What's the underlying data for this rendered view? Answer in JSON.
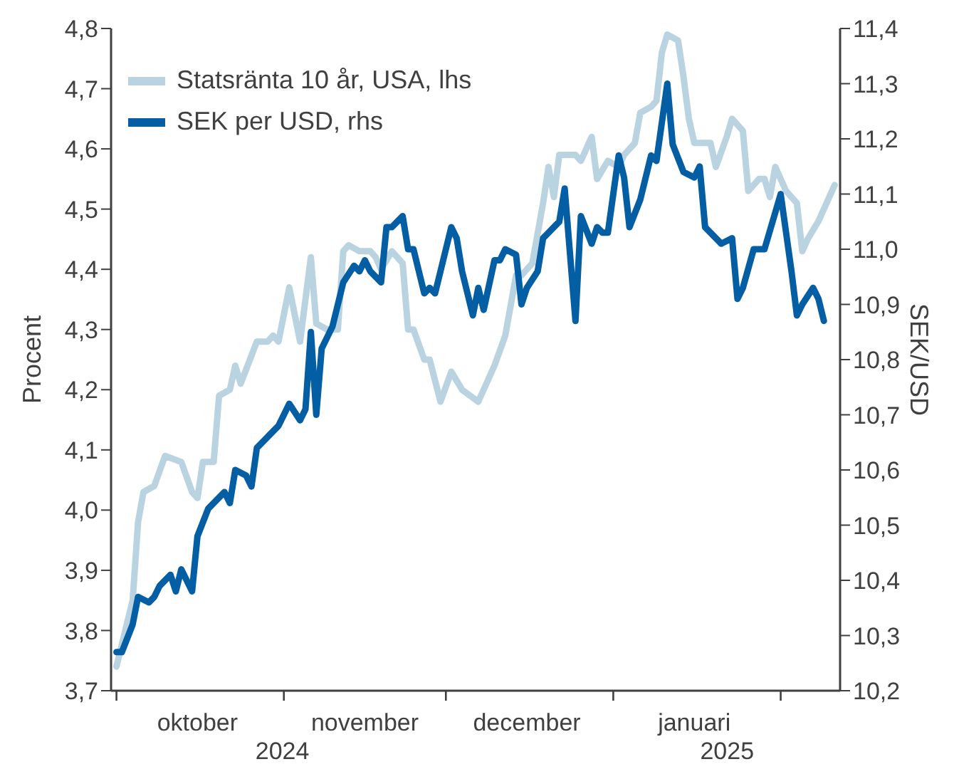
{
  "chart_data": {
    "type": "line",
    "xlabel": null,
    "ylabel": "Procent",
    "y2label": "SEK/USD",
    "xlim": [
      "2024-09-30",
      "2025-02-12"
    ],
    "xticks": [
      {
        "value": "2024-10-01",
        "label": null
      },
      {
        "value": "2024-10-16",
        "label": "oktober"
      },
      {
        "value": "2024-11-01",
        "label": null
      },
      {
        "value": "2024-11-16",
        "label": "november"
      },
      {
        "value": "2024-12-01",
        "label": null
      },
      {
        "value": "2024-12-16",
        "label": "december"
      },
      {
        "value": "2025-01-01",
        "label": null
      },
      {
        "value": "2025-01-16",
        "label": "januari"
      },
      {
        "value": "2025-02-01",
        "label": null
      }
    ],
    "annotations": [
      "2024",
      "2025"
    ],
    "ylim": [
      3.7,
      4.8
    ],
    "yticks": [
      {
        "value": 3.7,
        "label": "3,7"
      },
      {
        "value": 3.8,
        "label": "3,8"
      },
      {
        "value": 3.9,
        "label": "3,9"
      },
      {
        "value": 4.0,
        "label": "4,0"
      },
      {
        "value": 4.1,
        "label": "4,1"
      },
      {
        "value": 4.2,
        "label": "4,2"
      },
      {
        "value": 4.3,
        "label": "4,3"
      },
      {
        "value": 4.4,
        "label": "4,4"
      },
      {
        "value": 4.5,
        "label": "4,5"
      },
      {
        "value": 4.6,
        "label": "4,6"
      },
      {
        "value": 4.7,
        "label": "4,7"
      },
      {
        "value": 4.8,
        "label": "4,8"
      }
    ],
    "y2lim": [
      10.2,
      11.4
    ],
    "y2ticks": [
      {
        "value": 10.2,
        "label": "10,2"
      },
      {
        "value": 10.3,
        "label": "10,3"
      },
      {
        "value": 10.4,
        "label": "10,4"
      },
      {
        "value": 10.5,
        "label": "10,5"
      },
      {
        "value": 10.6,
        "label": "10,6"
      },
      {
        "value": 10.7,
        "label": "10,7"
      },
      {
        "value": 10.8,
        "label": "10,8"
      },
      {
        "value": 10.9,
        "label": "10,9"
      },
      {
        "value": 11.0,
        "label": "11,0"
      },
      {
        "value": 11.1,
        "label": "11,1"
      },
      {
        "value": 11.2,
        "label": "11,2"
      },
      {
        "value": 11.3,
        "label": "11,3"
      },
      {
        "value": 11.4,
        "label": "11,4"
      }
    ],
    "legend": "top left",
    "line_style": "solid",
    "series": [
      {
        "name": "Statsränta 10 år, USA, lhs",
        "color": "#b9d3e1",
        "x": [
          "2024-10-01",
          "2024-10-04",
          "2024-10-05",
          "2024-10-06",
          "2024-10-08",
          "2024-10-10",
          "2024-10-13",
          "2024-10-15",
          "2024-10-16",
          "2024-10-17",
          "2024-10-19",
          "2024-10-20",
          "2024-10-22",
          "2024-10-23",
          "2024-10-24",
          "2024-10-27",
          "2024-10-29",
          "2024-10-30",
          "2024-10-31",
          "2024-11-02",
          "2024-11-04",
          "2024-11-06",
          "2024-11-07",
          "2024-11-09",
          "2024-11-11",
          "2024-11-12",
          "2024-11-13",
          "2024-11-15",
          "2024-11-17",
          "2024-11-18",
          "2024-11-19",
          "2024-11-21",
          "2024-11-23",
          "2024-11-24",
          "2024-11-25",
          "2024-11-27",
          "2024-11-28",
          "2024-11-30",
          "2024-12-02",
          "2024-12-04",
          "2024-12-07",
          "2024-12-08",
          "2024-12-10",
          "2024-12-12",
          "2024-12-14",
          "2024-12-15",
          "2024-12-17",
          "2024-12-19",
          "2024-12-20",
          "2024-12-21",
          "2024-12-22",
          "2024-12-25",
          "2024-12-26",
          "2024-12-28",
          "2024-12-29",
          "2024-12-31",
          "2025-01-02",
          "2025-01-03",
          "2025-01-05",
          "2025-01-06",
          "2025-01-08",
          "2025-01-09",
          "2025-01-10",
          "2025-01-11",
          "2025-01-13",
          "2025-01-14",
          "2025-01-15",
          "2025-01-16",
          "2025-01-18",
          "2025-01-19",
          "2025-01-20",
          "2025-01-22",
          "2025-01-23",
          "2025-01-25",
          "2025-01-26",
          "2025-01-28",
          "2025-01-29",
          "2025-01-30",
          "2025-01-31",
          "2025-02-02",
          "2025-02-04",
          "2025-02-05",
          "2025-02-06",
          "2025-02-08",
          "2025-02-09",
          "2025-02-11"
        ],
        "values": [
          3.74,
          3.85,
          3.98,
          4.03,
          4.04,
          4.09,
          4.08,
          4.03,
          4.02,
          4.08,
          4.08,
          4.19,
          4.2,
          4.24,
          4.21,
          4.28,
          4.28,
          4.29,
          4.28,
          4.37,
          4.28,
          4.42,
          4.31,
          4.3,
          4.3,
          4.43,
          4.44,
          4.43,
          4.43,
          4.42,
          4.4,
          4.43,
          4.41,
          4.3,
          4.3,
          4.25,
          4.25,
          4.18,
          4.23,
          4.2,
          4.18,
          4.2,
          4.24,
          4.29,
          4.39,
          4.39,
          4.41,
          4.51,
          4.57,
          4.52,
          4.59,
          4.59,
          4.58,
          4.62,
          4.55,
          4.58,
          4.57,
          4.59,
          4.61,
          4.66,
          4.67,
          4.68,
          4.76,
          4.79,
          4.78,
          4.72,
          4.65,
          4.61,
          4.61,
          4.61,
          4.57,
          4.62,
          4.65,
          4.63,
          4.53,
          4.55,
          4.55,
          4.52,
          4.57,
          4.53,
          4.51,
          4.43,
          4.45,
          4.48,
          4.5,
          4.54
        ]
      },
      {
        "name": "SEK per USD, rhs",
        "color": "#045ea3",
        "axis": "y2",
        "x": [
          "2024-10-01",
          "2024-10-02",
          "2024-10-04",
          "2024-10-05",
          "2024-10-07",
          "2024-10-08",
          "2024-10-09",
          "2024-10-11",
          "2024-10-12",
          "2024-10-13",
          "2024-10-15",
          "2024-10-16",
          "2024-10-18",
          "2024-10-19",
          "2024-10-21",
          "2024-10-22",
          "2024-10-23",
          "2024-10-25",
          "2024-10-26",
          "2024-10-27",
          "2024-10-29",
          "2024-10-31",
          "2024-11-02",
          "2024-11-04",
          "2024-11-05",
          "2024-11-06",
          "2024-11-07",
          "2024-11-08",
          "2024-11-10",
          "2024-11-12",
          "2024-11-14",
          "2024-11-15",
          "2024-11-16",
          "2024-11-17",
          "2024-11-19",
          "2024-11-20",
          "2024-11-21",
          "2024-11-23",
          "2024-11-24",
          "2024-11-25",
          "2024-11-27",
          "2024-11-28",
          "2024-11-29",
          "2024-12-02",
          "2024-12-03",
          "2024-12-04",
          "2024-12-06",
          "2024-12-07",
          "2024-12-08",
          "2024-12-10",
          "2024-12-11",
          "2024-12-12",
          "2024-12-14",
          "2024-12-15",
          "2024-12-16",
          "2024-12-18",
          "2024-12-19",
          "2024-12-21",
          "2024-12-22",
          "2024-12-23",
          "2024-12-25",
          "2024-12-26",
          "2024-12-28",
          "2024-12-29",
          "2024-12-30",
          "2024-12-31",
          "2025-01-02",
          "2025-01-03",
          "2025-01-04",
          "2025-01-06",
          "2025-01-08",
          "2025-01-09",
          "2025-01-11",
          "2025-01-12",
          "2025-01-14",
          "2025-01-16",
          "2025-01-17",
          "2025-01-18",
          "2025-01-20",
          "2025-01-21",
          "2025-01-23",
          "2025-01-24",
          "2025-01-25",
          "2025-01-27",
          "2025-01-28",
          "2025-01-29",
          "2025-02-01",
          "2025-02-03",
          "2025-02-04",
          "2025-02-05",
          "2025-02-07",
          "2025-02-08",
          "2025-02-09"
        ],
        "values": [
          10.27,
          10.27,
          10.32,
          10.37,
          10.36,
          10.37,
          10.39,
          10.41,
          10.38,
          10.42,
          10.38,
          10.48,
          10.53,
          10.54,
          10.56,
          10.54,
          10.6,
          10.59,
          10.57,
          10.64,
          10.66,
          10.68,
          10.72,
          10.69,
          10.71,
          10.85,
          10.7,
          10.82,
          10.86,
          10.94,
          10.97,
          10.96,
          10.98,
          10.96,
          10.94,
          11.04,
          11.04,
          11.06,
          11.0,
          11.0,
          10.92,
          10.93,
          10.92,
          11.04,
          11.02,
          10.96,
          10.88,
          10.93,
          10.89,
          10.98,
          10.98,
          11.0,
          10.99,
          10.9,
          10.93,
          10.96,
          11.02,
          11.04,
          11.05,
          11.11,
          10.87,
          11.06,
          11.01,
          11.04,
          11.03,
          11.03,
          11.17,
          11.13,
          11.04,
          11.09,
          11.17,
          11.16,
          11.3,
          11.19,
          11.14,
          11.13,
          11.15,
          11.04,
          11.02,
          11.01,
          11.02,
          10.91,
          10.93,
          11.0,
          11.0,
          11.0,
          11.1,
          10.96,
          10.88,
          10.9,
          10.93,
          10.91,
          10.87
        ]
      }
    ]
  }
}
